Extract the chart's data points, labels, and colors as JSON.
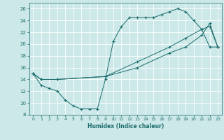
{
  "xlabel": "Humidex (Indice chaleur)",
  "ylabel": "",
  "bg_color": "#cce8e8",
  "grid_color": "#b0d0d0",
  "line_color": "#1a6b6b",
  "xlim": [
    -0.5,
    23.5
  ],
  "ylim": [
    8,
    27
  ],
  "xticks": [
    0,
    1,
    2,
    3,
    4,
    5,
    6,
    7,
    8,
    9,
    10,
    11,
    12,
    13,
    14,
    15,
    16,
    17,
    18,
    19,
    20,
    21,
    22,
    23
  ],
  "yticks": [
    8,
    10,
    12,
    14,
    16,
    18,
    20,
    22,
    24,
    26
  ],
  "curve1_x": [
    0,
    1,
    2,
    3,
    4,
    5,
    6,
    7,
    8,
    9,
    10,
    11,
    12,
    13,
    14,
    15,
    16,
    17,
    18,
    19,
    20,
    21,
    22,
    23
  ],
  "curve1_y": [
    15,
    13,
    12.5,
    12,
    10.5,
    9.5,
    9,
    9,
    9,
    14,
    20.5,
    23,
    24.5,
    24.5,
    24.5,
    24.5,
    25,
    25.5,
    26,
    25.5,
    24,
    22.5,
    19.5,
    19.5
  ],
  "curve2_x": [
    0,
    1,
    3,
    9,
    13,
    17,
    19,
    21,
    22,
    23
  ],
  "curve2_y": [
    15,
    14,
    14,
    14.5,
    17,
    19.5,
    21,
    22.5,
    23,
    19.5
  ],
  "curve3_x": [
    0,
    1,
    3,
    9,
    13,
    17,
    19,
    21,
    22,
    23
  ],
  "curve3_y": [
    15,
    14,
    14,
    14.5,
    16,
    18.5,
    19.5,
    21.5,
    23.5,
    19.5
  ]
}
